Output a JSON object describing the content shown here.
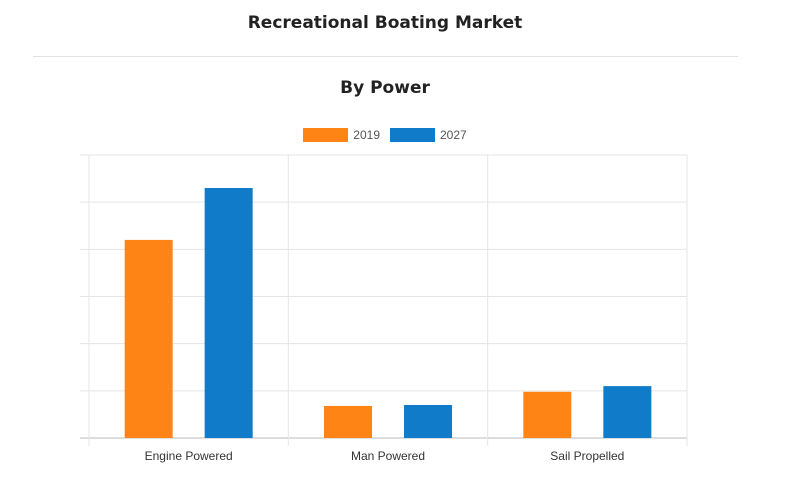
{
  "page": {
    "title": "Recreational Boating Market"
  },
  "colors": {
    "series_2019": "#ff8416",
    "series_2027": "#0f7bc9",
    "grid": "#e5e5e5",
    "axis": "#bbbbbb"
  },
  "chart_data": {
    "type": "bar",
    "title": "By Power",
    "categories": [
      "Engine Powered",
      "Man Powered",
      "Sail Propelled"
    ],
    "series": [
      {
        "name": "2019",
        "values": [
          42,
          6.8,
          9.8
        ]
      },
      {
        "name": "2027",
        "values": [
          53,
          7.0,
          11
        ]
      }
    ],
    "ylim": [
      0,
      60
    ],
    "yticks_count": 6,
    "y_tick_labels_shown": false,
    "grid": true,
    "legend_position": "top-center",
    "xlabel": "",
    "ylabel": ""
  }
}
